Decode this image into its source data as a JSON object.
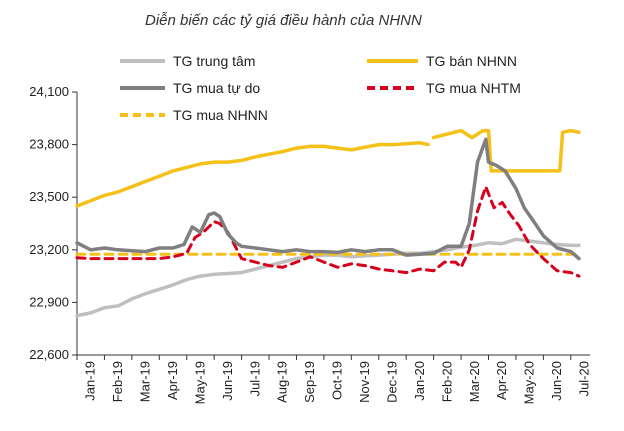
{
  "chart_data": {
    "type": "line",
    "title": "Diễn biến các tỷ giá điều hành của NHNN",
    "xlabel": "",
    "ylabel": "",
    "ylim": [
      22600,
      24100
    ],
    "yticks": [
      22600,
      22900,
      23200,
      23500,
      23800,
      24100
    ],
    "ytick_labels": [
      "22,600",
      "22,900",
      "23,200",
      "23,500",
      "23,800",
      "24,100"
    ],
    "x_labels": [
      "Jan-19",
      "Feb-19",
      "Mar-19",
      "Apr-19",
      "May-19",
      "Jun-19",
      "Jul-19",
      "Aug-19",
      "Sep-19",
      "Oct-19",
      "Nov-19",
      "Dec-19",
      "Jan-20",
      "Feb-20",
      "Mar-20",
      "Apr-20",
      "May-20",
      "Jun-20",
      "Jul-20"
    ],
    "legend_position": "top",
    "grid": false,
    "series": [
      {
        "name": "TG trung tâm",
        "color": "#bfbfbf",
        "style": "solid",
        "points": [
          [
            0,
            22825
          ],
          [
            0.5,
            22840
          ],
          [
            1,
            22870
          ],
          [
            1.5,
            22880
          ],
          [
            2,
            22920
          ],
          [
            2.5,
            22950
          ],
          [
            3,
            22975
          ],
          [
            3.5,
            23000
          ],
          [
            4,
            23030
          ],
          [
            4.5,
            23050
          ],
          [
            5,
            23060
          ],
          [
            5.5,
            23065
          ],
          [
            6,
            23070
          ],
          [
            6.5,
            23090
          ],
          [
            7,
            23110
          ],
          [
            7.5,
            23130
          ],
          [
            8,
            23150
          ],
          [
            8.5,
            23160
          ],
          [
            9,
            23170
          ],
          [
            9.5,
            23170
          ],
          [
            10,
            23160
          ],
          [
            10.5,
            23165
          ],
          [
            11,
            23170
          ],
          [
            11.5,
            23175
          ],
          [
            12,
            23180
          ],
          [
            12.5,
            23180
          ],
          [
            13,
            23190
          ],
          [
            13.5,
            23200
          ],
          [
            14,
            23215
          ],
          [
            14.5,
            23225
          ],
          [
            15,
            23240
          ],
          [
            15.5,
            23235
          ],
          [
            16,
            23260
          ],
          [
            16.5,
            23250
          ],
          [
            17,
            23240
          ],
          [
            17.5,
            23230
          ],
          [
            18,
            23225
          ],
          [
            18.3,
            23225
          ]
        ]
      },
      {
        "name": "TG bán NHNN",
        "color": "#f5c018",
        "style": "solid",
        "segments": [
          [
            [
              0,
              23450
            ],
            [
              0.5,
              23480
            ],
            [
              1,
              23510
            ],
            [
              1.5,
              23530
            ],
            [
              2,
              23560
            ],
            [
              2.5,
              23590
            ],
            [
              3,
              23620
            ],
            [
              3.5,
              23650
            ],
            [
              4,
              23670
            ],
            [
              4.5,
              23690
            ],
            [
              5,
              23700
            ],
            [
              5.5,
              23700
            ],
            [
              6,
              23710
            ],
            [
              6.5,
              23730
            ],
            [
              7,
              23745
            ],
            [
              7.5,
              23760
            ],
            [
              8,
              23780
            ],
            [
              8.5,
              23790
            ],
            [
              9,
              23790
            ],
            [
              9.5,
              23780
            ],
            [
              10,
              23770
            ],
            [
              10.5,
              23785
            ],
            [
              11,
              23800
            ],
            [
              11.5,
              23800
            ],
            [
              12,
              23805
            ],
            [
              12.5,
              23810
            ],
            [
              12.8,
              23800
            ]
          ],
          [
            [
              13.0,
              23840
            ],
            [
              13.5,
              23860
            ],
            [
              14,
              23880
            ],
            [
              14.4,
              23840
            ],
            [
              14.8,
              23880
            ],
            [
              15,
              23880
            ],
            [
              15.1,
              23650
            ],
            [
              16,
              23650
            ],
            [
              17,
              23650
            ],
            [
              17.5,
              23650
            ],
            [
              17.6,
              23650
            ],
            [
              17.7,
              23870
            ],
            [
              18,
              23880
            ],
            [
              18.3,
              23870
            ]
          ]
        ]
      },
      {
        "name": "TG mua tự do",
        "color": "#7f7f7f",
        "style": "solid",
        "points": [
          [
            0,
            23240
          ],
          [
            0.5,
            23200
          ],
          [
            1,
            23210
          ],
          [
            1.5,
            23200
          ],
          [
            2,
            23195
          ],
          [
            2.5,
            23190
          ],
          [
            3,
            23210
          ],
          [
            3.5,
            23210
          ],
          [
            3.9,
            23230
          ],
          [
            4.2,
            23330
          ],
          [
            4.5,
            23300
          ],
          [
            4.8,
            23400
          ],
          [
            5,
            23410
          ],
          [
            5.2,
            23390
          ],
          [
            5.5,
            23290
          ],
          [
            5.8,
            23240
          ],
          [
            6,
            23220
          ],
          [
            6.5,
            23210
          ],
          [
            7,
            23200
          ],
          [
            7.5,
            23190
          ],
          [
            8,
            23200
          ],
          [
            8.5,
            23190
          ],
          [
            9,
            23190
          ],
          [
            9.5,
            23185
          ],
          [
            10,
            23200
          ],
          [
            10.5,
            23190
          ],
          [
            11,
            23200
          ],
          [
            11.5,
            23200
          ],
          [
            12,
            23170
          ],
          [
            12.5,
            23175
          ],
          [
            13,
            23180
          ],
          [
            13.5,
            23220
          ],
          [
            14,
            23220
          ],
          [
            14.3,
            23350
          ],
          [
            14.6,
            23700
          ],
          [
            14.9,
            23830
          ],
          [
            15,
            23700
          ],
          [
            15.3,
            23680
          ],
          [
            15.6,
            23650
          ],
          [
            16,
            23550
          ],
          [
            16.3,
            23440
          ],
          [
            16.7,
            23350
          ],
          [
            17,
            23280
          ],
          [
            17.5,
            23210
          ],
          [
            18,
            23190
          ],
          [
            18.3,
            23150
          ]
        ]
      },
      {
        "name": "TG mua NHTM",
        "color": "#d6001c",
        "style": "dashed",
        "points": [
          [
            0,
            23155
          ],
          [
            0.5,
            23150
          ],
          [
            1,
            23150
          ],
          [
            1.5,
            23150
          ],
          [
            2,
            23150
          ],
          [
            2.5,
            23150
          ],
          [
            3,
            23150
          ],
          [
            3.5,
            23160
          ],
          [
            4,
            23180
          ],
          [
            4.3,
            23270
          ],
          [
            4.6,
            23300
          ],
          [
            5,
            23360
          ],
          [
            5.2,
            23350
          ],
          [
            5.5,
            23300
          ],
          [
            5.8,
            23210
          ],
          [
            6,
            23150
          ],
          [
            6.5,
            23130
          ],
          [
            7,
            23110
          ],
          [
            7.5,
            23100
          ],
          [
            8,
            23130
          ],
          [
            8.5,
            23160
          ],
          [
            9,
            23130
          ],
          [
            9.5,
            23100
          ],
          [
            10,
            23120
          ],
          [
            10.5,
            23110
          ],
          [
            11,
            23090
          ],
          [
            11.5,
            23080
          ],
          [
            12,
            23070
          ],
          [
            12.5,
            23090
          ],
          [
            13,
            23080
          ],
          [
            13.4,
            23130
          ],
          [
            13.8,
            23130
          ],
          [
            14,
            23100
          ],
          [
            14.3,
            23200
          ],
          [
            14.6,
            23420
          ],
          [
            14.9,
            23560
          ],
          [
            15.2,
            23440
          ],
          [
            15.5,
            23470
          ],
          [
            15.8,
            23400
          ],
          [
            16.1,
            23340
          ],
          [
            16.5,
            23230
          ],
          [
            17,
            23150
          ],
          [
            17.5,
            23080
          ],
          [
            18,
            23070
          ],
          [
            18.3,
            23050
          ]
        ]
      },
      {
        "name": "TG mua NHNN",
        "color": "#f5c018",
        "style": "dashed",
        "points": [
          [
            0,
            23175
          ],
          [
            5,
            23175
          ],
          [
            10,
            23175
          ],
          [
            15,
            23175
          ],
          [
            18.3,
            23175
          ]
        ]
      }
    ]
  }
}
